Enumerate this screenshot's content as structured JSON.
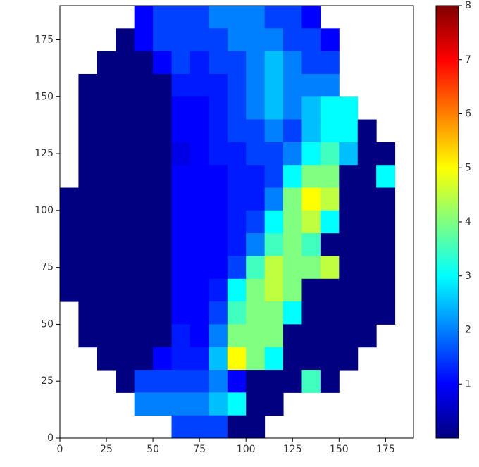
{
  "chart_data": {
    "type": "heatmap",
    "colormap": "jet",
    "x": [
      5,
      15,
      25,
      35,
      45,
      55,
      65,
      75,
      85,
      95,
      105,
      115,
      125,
      135,
      145,
      155,
      165,
      175,
      185
    ],
    "y": [
      185,
      175,
      165,
      155,
      145,
      135,
      125,
      115,
      105,
      95,
      85,
      75,
      65,
      55,
      45,
      35,
      25,
      15,
      5
    ],
    "z": [
      [
        null,
        null,
        null,
        null,
        1,
        1.5,
        1.5,
        1.5,
        2,
        2,
        2,
        1.5,
        1.5,
        1,
        null,
        null,
        null,
        null,
        null
      ],
      [
        null,
        null,
        null,
        0,
        1,
        1.5,
        1.5,
        1.5,
        1.5,
        2,
        2,
        2,
        1.5,
        1.5,
        1,
        null,
        null,
        null,
        null
      ],
      [
        null,
        null,
        0,
        0,
        0,
        1,
        1.5,
        1.2,
        1.5,
        1.5,
        2,
        2.5,
        2,
        1.5,
        1.5,
        null,
        null,
        null,
        null
      ],
      [
        null,
        0,
        0,
        0,
        0,
        0,
        1.2,
        1.2,
        1.2,
        1.5,
        2,
        2.5,
        2,
        2,
        2,
        null,
        null,
        null,
        null
      ],
      [
        null,
        0,
        0,
        0,
        0,
        0,
        1,
        1,
        1.2,
        1.5,
        2,
        2.5,
        2,
        2.5,
        3,
        3,
        null,
        null,
        null
      ],
      [
        null,
        0,
        0,
        0,
        0,
        0,
        1,
        1,
        1.2,
        1.5,
        1.5,
        2,
        1.5,
        2.5,
        3,
        3,
        0,
        null,
        null
      ],
      [
        null,
        0,
        0,
        0,
        0,
        0,
        0.8,
        1,
        1.2,
        1.2,
        1.5,
        1.5,
        2,
        3,
        3.5,
        2.5,
        0,
        0,
        null
      ],
      [
        null,
        0,
        0,
        0,
        0,
        0,
        1,
        1,
        1,
        1.2,
        1.2,
        1.5,
        3,
        4,
        4,
        0,
        0,
        3,
        null
      ],
      [
        0,
        0,
        0,
        0,
        0,
        0,
        1,
        1,
        1,
        1.2,
        1.2,
        2,
        4,
        5,
        4.5,
        0,
        0,
        0,
        null
      ],
      [
        0,
        0,
        0,
        0,
        0,
        0,
        1,
        1,
        1,
        1.2,
        1.5,
        3,
        4,
        4.5,
        3,
        0,
        0,
        0,
        null
      ],
      [
        0,
        0,
        0,
        0,
        0,
        0,
        1,
        1,
        1,
        1.2,
        2,
        3.5,
        4,
        3.5,
        0,
        0,
        0,
        0,
        null
      ],
      [
        0,
        0,
        0,
        0,
        0,
        0,
        1,
        1,
        1,
        1.5,
        3.5,
        4.5,
        4,
        4,
        4.5,
        0,
        0,
        0,
        null
      ],
      [
        0,
        0,
        0,
        0,
        0,
        0,
        1,
        1,
        1.2,
        3,
        4,
        4.5,
        4,
        0,
        0,
        0,
        0,
        0,
        null
      ],
      [
        null,
        0,
        0,
        0,
        0,
        0,
        1,
        1,
        1.5,
        3.5,
        4,
        4,
        3,
        0,
        0,
        0,
        0,
        0,
        null
      ],
      [
        null,
        0,
        0,
        0,
        0,
        0,
        1.2,
        1,
        2,
        4,
        4,
        4,
        0,
        0,
        0,
        0,
        0,
        null,
        null
      ],
      [
        null,
        null,
        0,
        0,
        0,
        1,
        1.2,
        1.2,
        2.5,
        5,
        4,
        3,
        0,
        0,
        0,
        0,
        null,
        null,
        null
      ],
      [
        null,
        null,
        null,
        0,
        1.5,
        1.5,
        1.5,
        1.5,
        2,
        1,
        0,
        0,
        0,
        3.5,
        0,
        null,
        null,
        null,
        null
      ],
      [
        null,
        null,
        null,
        null,
        2,
        2,
        2,
        2,
        2.5,
        3,
        0,
        0,
        null,
        null,
        null,
        null,
        null,
        null,
        null
      ],
      [
        null,
        null,
        null,
        null,
        null,
        null,
        1.5,
        1.5,
        1.5,
        0,
        0,
        null,
        null,
        null,
        null,
        null,
        null,
        null,
        null
      ]
    ],
    "xlim": [
      0,
      190
    ],
    "ylim": [
      0,
      190
    ],
    "xticks": [
      0,
      25,
      50,
      75,
      100,
      125,
      150,
      175
    ],
    "yticks": [
      0,
      25,
      50,
      75,
      100,
      125,
      150,
      175
    ],
    "clim": [
      0,
      8
    ],
    "cticks": [
      1,
      2,
      3,
      4,
      5,
      6,
      7,
      8
    ]
  }
}
